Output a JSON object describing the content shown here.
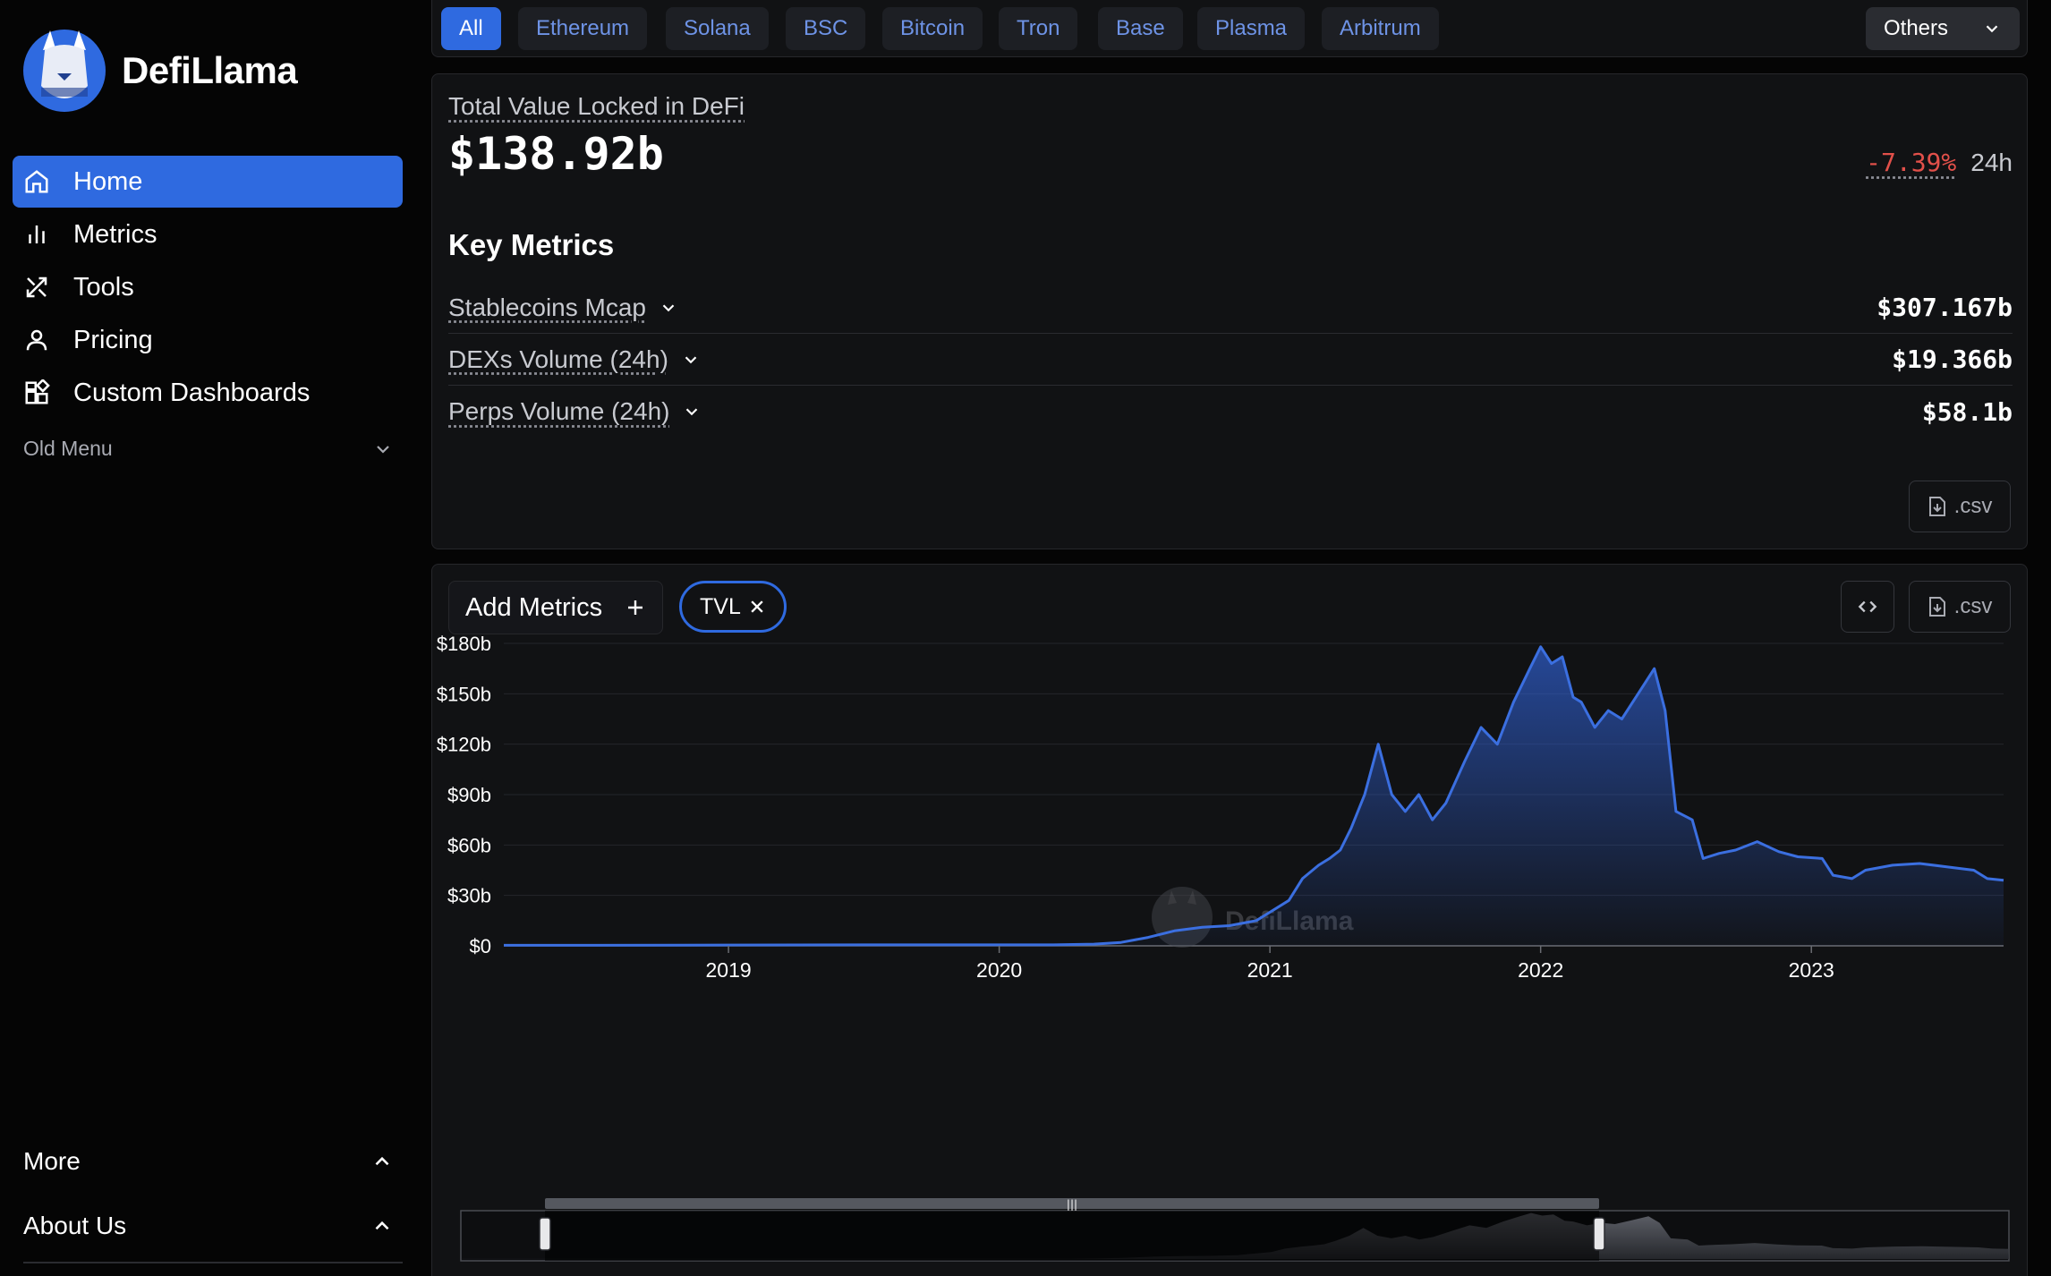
{
  "brand": {
    "name": "DefiLlama"
  },
  "sidebar": {
    "items": [
      {
        "label": "Home",
        "icon": "home-icon",
        "active": true
      },
      {
        "label": "Metrics",
        "icon": "bar-chart-icon",
        "active": false
      },
      {
        "label": "Tools",
        "icon": "tools-icon",
        "active": false
      },
      {
        "label": "Pricing",
        "icon": "user-icon",
        "active": false
      },
      {
        "label": "Custom Dashboards",
        "icon": "dashboard-icon",
        "active": false
      }
    ],
    "old_menu": "Old Menu",
    "more": "More",
    "about": "About Us"
  },
  "chains": {
    "items": [
      "All",
      "Ethereum",
      "Solana",
      "BSC",
      "Bitcoin",
      "Tron",
      "Base",
      "Plasma",
      "Arbitrum"
    ],
    "active": "All",
    "others_label": "Others"
  },
  "tvl": {
    "label": "Total Value Locked in DeFi",
    "value": "$138.92b",
    "change": "-7.39%",
    "period": "24h"
  },
  "key_metrics": {
    "title": "Key Metrics",
    "rows": [
      {
        "name": "Stablecoins Mcap",
        "value": "$307.167b"
      },
      {
        "name": "DEXs Volume (24h)",
        "value": "$19.366b"
      },
      {
        "name": "Perps Volume (24h)",
        "value": "$58.1b"
      }
    ],
    "csv_label": ".csv"
  },
  "chart_controls": {
    "add_metrics": "Add Metrics",
    "tvl_chip": "TVL",
    "csv_label": ".csv"
  },
  "colors": {
    "accent": "#2f6ae0",
    "line": "#3b6fe0",
    "negative": "#e2504a",
    "panel": "#111214"
  },
  "chart_data": {
    "type": "area",
    "watermark": "DefiLlama",
    "y_ticks": [
      "$0",
      "$30b",
      "$60b",
      "$90b",
      "$120b",
      "$150b",
      "$180b"
    ],
    "ylim": [
      0,
      180
    ],
    "x_ticks": [
      "2019",
      "2020",
      "2021",
      "2022",
      "2023"
    ],
    "xlim": [
      2018.17,
      2023.71
    ],
    "grid": true,
    "series": [
      {
        "name": "TVL",
        "points": [
          [
            2018.17,
            0.3
          ],
          [
            2018.5,
            0.3
          ],
          [
            2019.0,
            0.5
          ],
          [
            2019.5,
            0.6
          ],
          [
            2019.9,
            0.6
          ],
          [
            2020.2,
            0.6
          ],
          [
            2020.35,
            1.0
          ],
          [
            2020.45,
            2.0
          ],
          [
            2020.55,
            5
          ],
          [
            2020.65,
            9
          ],
          [
            2020.75,
            11
          ],
          [
            2020.85,
            12
          ],
          [
            2020.95,
            15
          ],
          [
            2021.0,
            20
          ],
          [
            2021.07,
            27
          ],
          [
            2021.12,
            40
          ],
          [
            2021.18,
            48
          ],
          [
            2021.22,
            52
          ],
          [
            2021.26,
            57
          ],
          [
            2021.3,
            70
          ],
          [
            2021.35,
            90
          ],
          [
            2021.4,
            120
          ],
          [
            2021.45,
            90
          ],
          [
            2021.5,
            80
          ],
          [
            2021.55,
            90
          ],
          [
            2021.6,
            75
          ],
          [
            2021.65,
            85
          ],
          [
            2021.72,
            110
          ],
          [
            2021.78,
            130
          ],
          [
            2021.84,
            120
          ],
          [
            2021.9,
            145
          ],
          [
            2021.96,
            165
          ],
          [
            2022.0,
            178
          ],
          [
            2022.04,
            168
          ],
          [
            2022.08,
            172
          ],
          [
            2022.12,
            148
          ],
          [
            2022.15,
            145
          ],
          [
            2022.2,
            130
          ],
          [
            2022.25,
            140
          ],
          [
            2022.3,
            135
          ],
          [
            2022.36,
            150
          ],
          [
            2022.42,
            165
          ],
          [
            2022.46,
            140
          ],
          [
            2022.5,
            80
          ],
          [
            2022.56,
            75
          ],
          [
            2022.6,
            52
          ],
          [
            2022.66,
            55
          ],
          [
            2022.72,
            57
          ],
          [
            2022.8,
            62
          ],
          [
            2022.88,
            56
          ],
          [
            2022.95,
            53
          ],
          [
            2023.04,
            52
          ],
          [
            2023.08,
            42
          ],
          [
            2023.15,
            40
          ],
          [
            2023.2,
            45
          ],
          [
            2023.3,
            48
          ],
          [
            2023.4,
            49
          ],
          [
            2023.5,
            47
          ],
          [
            2023.6,
            45
          ],
          [
            2023.65,
            40
          ],
          [
            2023.71,
            39
          ]
        ]
      }
    ]
  }
}
